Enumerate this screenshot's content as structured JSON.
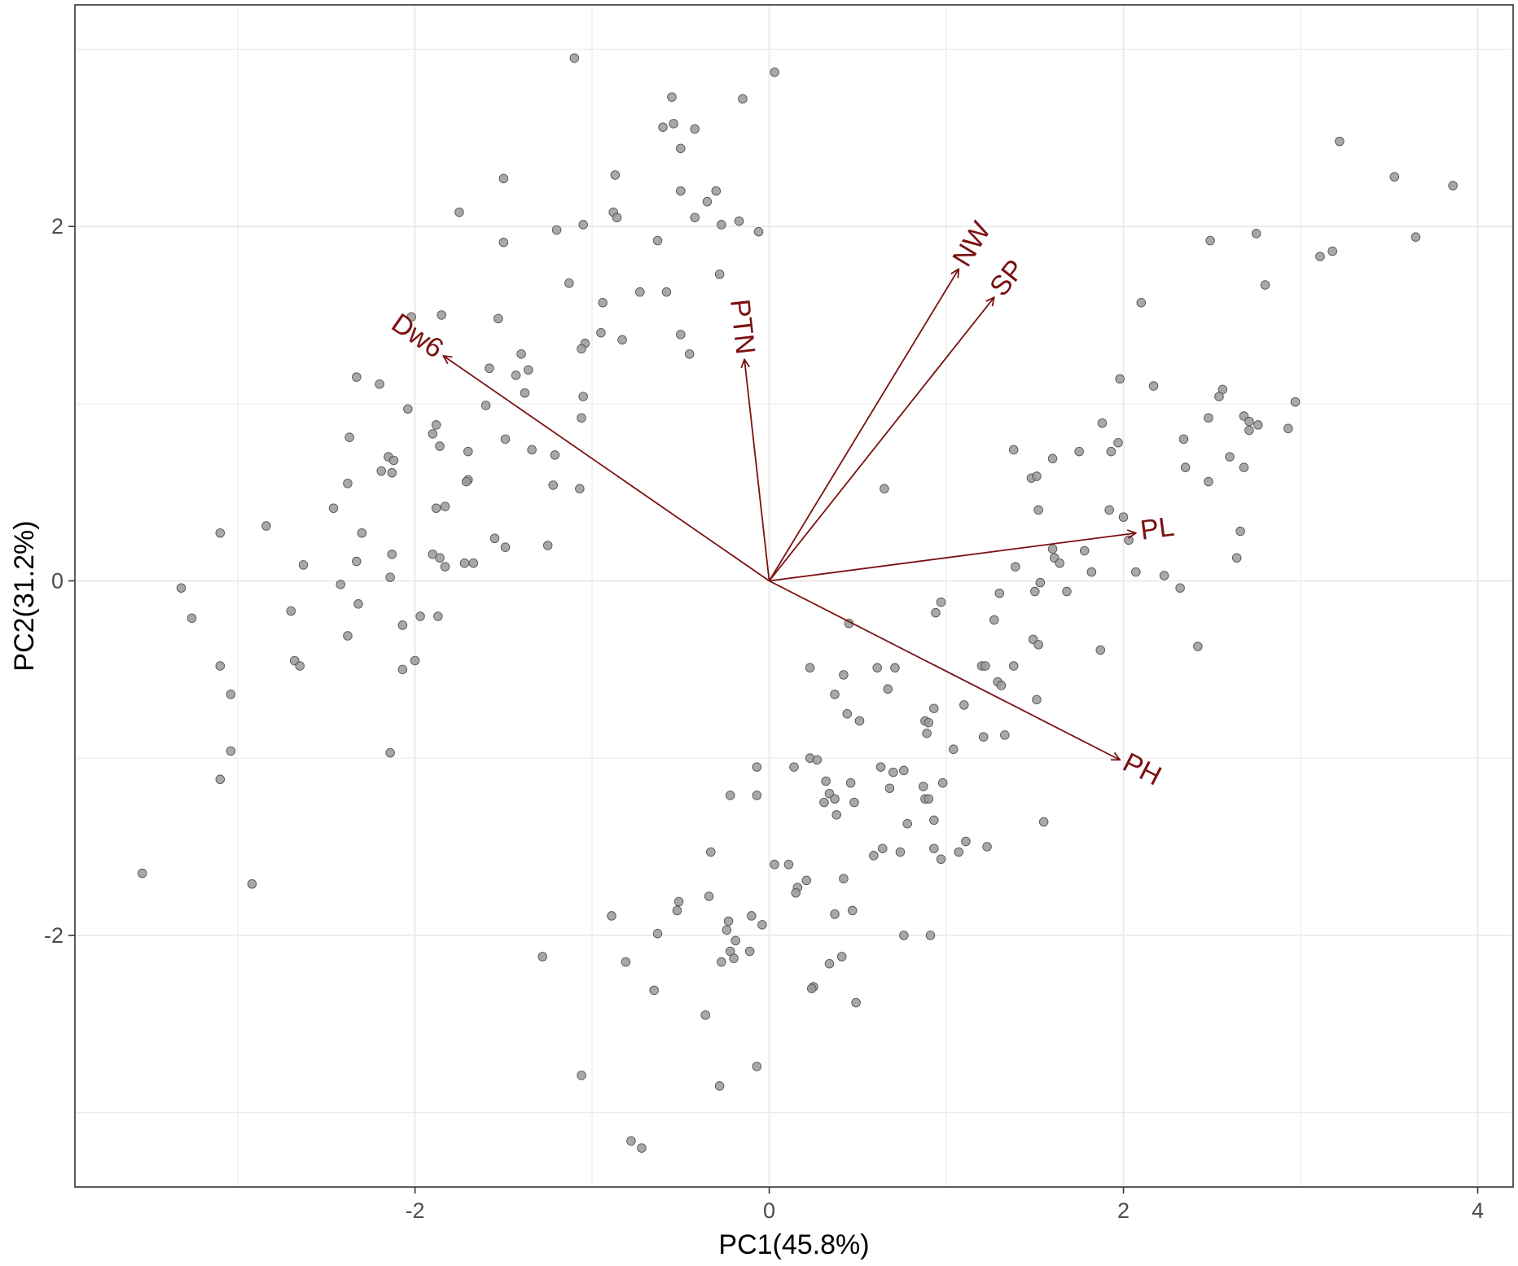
{
  "chart_data": {
    "type": "scatter",
    "xlabel": "PC1(45.8%)",
    "ylabel": "PC2(31.2%)",
    "xlim": [
      -3.92,
      4.2
    ],
    "ylim": [
      -3.42,
      3.25
    ],
    "x_ticks": [
      -2,
      0,
      2,
      4
    ],
    "x_tick_labels": [
      "-2",
      "0",
      "2",
      "4"
    ],
    "y_ticks": [
      -2,
      0,
      2
    ],
    "y_tick_labels": [
      "-2",
      "0",
      "2"
    ],
    "grid": true,
    "point_color": "#999999",
    "arrow_color": "#7b1111",
    "points": [
      [
        -1.1,
        2.95
      ],
      [
        0.03,
        2.87
      ],
      [
        -0.55,
        2.73
      ],
      [
        -0.15,
        2.72
      ],
      [
        -0.6,
        2.56
      ],
      [
        -0.54,
        2.58
      ],
      [
        -0.42,
        2.55
      ],
      [
        -0.5,
        2.44
      ],
      [
        -1.5,
        2.27
      ],
      [
        -0.87,
        2.29
      ],
      [
        -0.3,
        2.2
      ],
      [
        -0.5,
        2.2
      ],
      [
        -0.35,
        2.14
      ],
      [
        -1.75,
        2.08
      ],
      [
        -0.88,
        2.08
      ],
      [
        -0.86,
        2.05
      ],
      [
        -0.42,
        2.05
      ],
      [
        -0.17,
        2.03
      ],
      [
        -0.27,
        2.01
      ],
      [
        -1.2,
        1.98
      ],
      [
        -1.05,
        2.01
      ],
      [
        -0.06,
        1.97
      ],
      [
        -1.5,
        1.91
      ],
      [
        -0.63,
        1.92
      ],
      [
        -0.28,
        1.73
      ],
      [
        -1.13,
        1.68
      ],
      [
        -0.73,
        1.63
      ],
      [
        -0.58,
        1.63
      ],
      [
        -0.94,
        1.57
      ],
      [
        -1.53,
        1.48
      ],
      [
        -1.85,
        1.5
      ],
      [
        -2.02,
        1.49
      ],
      [
        -0.95,
        1.4
      ],
      [
        -0.83,
        1.36
      ],
      [
        -1.04,
        1.34
      ],
      [
        -1.06,
        1.31
      ],
      [
        -0.5,
        1.39
      ],
      [
        -0.45,
        1.28
      ],
      [
        -1.4,
        1.28
      ],
      [
        -1.36,
        1.19
      ],
      [
        -1.43,
        1.16
      ],
      [
        -1.58,
        1.2
      ],
      [
        -2.33,
        1.15
      ],
      [
        -2.2,
        1.11
      ],
      [
        -1.38,
        1.06
      ],
      [
        -1.05,
        1.04
      ],
      [
        -2.04,
        0.97
      ],
      [
        -1.6,
        0.99
      ],
      [
        -1.06,
        0.92
      ],
      [
        -1.88,
        0.88
      ],
      [
        -1.9,
        0.83
      ],
      [
        -2.37,
        0.81
      ],
      [
        -1.49,
        0.8
      ],
      [
        -1.86,
        0.76
      ],
      [
        -1.34,
        0.74
      ],
      [
        -1.21,
        0.71
      ],
      [
        -1.7,
        0.73
      ],
      [
        -2.15,
        0.7
      ],
      [
        -2.12,
        0.68
      ],
      [
        -2.19,
        0.62
      ],
      [
        -2.13,
        0.61
      ],
      [
        -1.7,
        0.57
      ],
      [
        -1.71,
        0.56
      ],
      [
        -2.38,
        0.55
      ],
      [
        -1.22,
        0.54
      ],
      [
        -1.07,
        0.52
      ],
      [
        -1.83,
        0.42
      ],
      [
        -1.88,
        0.41
      ],
      [
        -2.46,
        0.41
      ],
      [
        -2.3,
        0.27
      ],
      [
        -2.84,
        0.31
      ],
      [
        -3.1,
        0.27
      ],
      [
        -1.55,
        0.24
      ],
      [
        -1.49,
        0.19
      ],
      [
        -1.25,
        0.2
      ],
      [
        -2.13,
        0.15
      ],
      [
        -1.9,
        0.15
      ],
      [
        -1.86,
        0.13
      ],
      [
        -2.33,
        0.11
      ],
      [
        -1.72,
        0.1
      ],
      [
        -1.67,
        0.1
      ],
      [
        -1.83,
        0.08
      ],
      [
        -2.63,
        0.09
      ],
      [
        -2.14,
        0.02
      ],
      [
        -2.42,
        -0.02
      ],
      [
        -3.32,
        -0.04
      ],
      [
        -2.32,
        -0.13
      ],
      [
        -2.7,
        -0.17
      ],
      [
        -1.87,
        -0.2
      ],
      [
        -1.97,
        -0.2
      ],
      [
        -3.26,
        -0.21
      ],
      [
        -2.07,
        -0.25
      ],
      [
        -2.38,
        -0.31
      ],
      [
        -2.68,
        -0.45
      ],
      [
        -2.65,
        -0.48
      ],
      [
        -2.0,
        -0.45
      ],
      [
        -3.1,
        -0.48
      ],
      [
        -2.07,
        -0.5
      ],
      [
        -3.04,
        -0.64
      ],
      [
        -2.14,
        -0.97
      ],
      [
        -3.04,
        -0.96
      ],
      [
        -3.1,
        -1.12
      ],
      [
        -3.54,
        -1.65
      ],
      [
        -2.92,
        -1.71
      ],
      [
        3.22,
        2.48
      ],
      [
        3.53,
        2.28
      ],
      [
        3.86,
        2.23
      ],
      [
        2.75,
        1.96
      ],
      [
        2.49,
        1.92
      ],
      [
        3.65,
        1.94
      ],
      [
        3.18,
        1.86
      ],
      [
        3.11,
        1.83
      ],
      [
        2.8,
        1.67
      ],
      [
        2.1,
        1.57
      ],
      [
        1.98,
        1.14
      ],
      [
        2.17,
        1.1
      ],
      [
        2.56,
        1.08
      ],
      [
        2.54,
        1.04
      ],
      [
        2.97,
        1.01
      ],
      [
        2.68,
        0.93
      ],
      [
        2.48,
        0.92
      ],
      [
        2.71,
        0.9
      ],
      [
        2.76,
        0.88
      ],
      [
        1.88,
        0.89
      ],
      [
        2.93,
        0.86
      ],
      [
        2.71,
        0.85
      ],
      [
        2.34,
        0.8
      ],
      [
        1.97,
        0.78
      ],
      [
        1.38,
        0.74
      ],
      [
        1.75,
        0.73
      ],
      [
        1.6,
        0.69
      ],
      [
        2.6,
        0.7
      ],
      [
        1.93,
        0.73
      ],
      [
        2.68,
        0.64
      ],
      [
        2.35,
        0.64
      ],
      [
        1.48,
        0.58
      ],
      [
        1.51,
        0.59
      ],
      [
        2.48,
        0.56
      ],
      [
        0.65,
        0.52
      ],
      [
        1.52,
        0.4
      ],
      [
        1.92,
        0.4
      ],
      [
        2.0,
        0.36
      ],
      [
        2.66,
        0.28
      ],
      [
        1.6,
        0.18
      ],
      [
        1.78,
        0.17
      ],
      [
        2.03,
        0.23
      ],
      [
        2.64,
        0.13
      ],
      [
        1.39,
        0.08
      ],
      [
        1.61,
        0.13
      ],
      [
        1.64,
        0.1
      ],
      [
        1.82,
        0.05
      ],
      [
        2.07,
        0.05
      ],
      [
        2.23,
        0.03
      ],
      [
        1.53,
        -0.01
      ],
      [
        1.5,
        -0.06
      ],
      [
        1.3,
        -0.07
      ],
      [
        1.68,
        -0.06
      ],
      [
        2.32,
        -0.04
      ],
      [
        0.97,
        -0.12
      ],
      [
        0.94,
        -0.18
      ],
      [
        1.27,
        -0.22
      ],
      [
        1.49,
        -0.33
      ],
      [
        1.52,
        -0.36
      ],
      [
        1.87,
        -0.39
      ],
      [
        2.42,
        -0.37
      ],
      [
        0.45,
        -0.24
      ],
      [
        0.23,
        -0.49
      ],
      [
        0.42,
        -0.53
      ],
      [
        0.61,
        -0.49
      ],
      [
        0.71,
        -0.49
      ],
      [
        1.2,
        -0.48
      ],
      [
        1.22,
        -0.48
      ],
      [
        1.38,
        -0.48
      ],
      [
        1.29,
        -0.57
      ],
      [
        1.31,
        -0.59
      ],
      [
        0.37,
        -0.64
      ],
      [
        0.67,
        -0.61
      ],
      [
        0.93,
        -0.72
      ],
      [
        0.44,
        -0.75
      ],
      [
        0.51,
        -0.79
      ],
      [
        0.88,
        -0.79
      ],
      [
        0.9,
        -0.8
      ],
      [
        1.1,
        -0.7
      ],
      [
        1.51,
        -0.67
      ],
      [
        0.89,
        -0.86
      ],
      [
        1.21,
        -0.88
      ],
      [
        1.33,
        -0.87
      ],
      [
        1.04,
        -0.95
      ],
      [
        0.23,
        -1.0
      ],
      [
        0.27,
        -1.01
      ],
      [
        0.14,
        -1.05
      ],
      [
        -0.07,
        -1.05
      ],
      [
        0.63,
        -1.05
      ],
      [
        0.7,
        -1.08
      ],
      [
        0.76,
        -1.07
      ],
      [
        0.32,
        -1.13
      ],
      [
        0.46,
        -1.14
      ],
      [
        0.98,
        -1.14
      ],
      [
        0.87,
        -1.16
      ],
      [
        0.68,
        -1.17
      ],
      [
        0.88,
        -1.23
      ],
      [
        0.34,
        -1.2
      ],
      [
        0.37,
        -1.23
      ],
      [
        0.31,
        -1.25
      ],
      [
        -0.22,
        -1.21
      ],
      [
        -0.07,
        -1.21
      ],
      [
        0.48,
        -1.25
      ],
      [
        0.38,
        -1.32
      ],
      [
        0.9,
        -1.23
      ],
      [
        0.93,
        -1.35
      ],
      [
        0.78,
        -1.37
      ],
      [
        0.93,
        -1.51
      ],
      [
        0.64,
        -1.51
      ],
      [
        0.74,
        -1.53
      ],
      [
        0.97,
        -1.57
      ],
      [
        1.11,
        -1.47
      ],
      [
        1.23,
        -1.5
      ],
      [
        1.55,
        -1.36
      ],
      [
        0.59,
        -1.55
      ],
      [
        1.07,
        -1.53
      ],
      [
        -0.33,
        -1.53
      ],
      [
        0.03,
        -1.6
      ],
      [
        0.11,
        -1.6
      ],
      [
        0.42,
        -1.68
      ],
      [
        0.21,
        -1.69
      ],
      [
        0.16,
        -1.73
      ],
      [
        0.15,
        -1.76
      ],
      [
        -0.34,
        -1.78
      ],
      [
        -0.51,
        -1.81
      ],
      [
        -0.52,
        -1.86
      ],
      [
        0.47,
        -1.86
      ],
      [
        0.37,
        -1.88
      ],
      [
        -0.89,
        -1.89
      ],
      [
        -0.1,
        -1.89
      ],
      [
        -0.23,
        -1.92
      ],
      [
        -0.04,
        -1.94
      ],
      [
        -0.24,
        -1.97
      ],
      [
        0.76,
        -2.0
      ],
      [
        0.91,
        -2.0
      ],
      [
        -0.63,
        -1.99
      ],
      [
        -0.19,
        -2.03
      ],
      [
        -1.28,
        -2.12
      ],
      [
        -0.81,
        -2.15
      ],
      [
        -0.22,
        -2.09
      ],
      [
        -0.11,
        -2.09
      ],
      [
        0.41,
        -2.12
      ],
      [
        0.34,
        -2.16
      ],
      [
        -0.2,
        -2.13
      ],
      [
        -0.27,
        -2.15
      ],
      [
        0.25,
        -2.29
      ],
      [
        0.24,
        -2.3
      ],
      [
        -0.65,
        -2.31
      ],
      [
        0.49,
        -2.38
      ],
      [
        -0.36,
        -2.45
      ],
      [
        -1.06,
        -2.79
      ],
      [
        -0.28,
        -2.85
      ],
      [
        -0.07,
        -2.74
      ],
      [
        -0.78,
        -3.16
      ],
      [
        -0.72,
        -3.2
      ]
    ],
    "vectors": [
      {
        "name": "Dw6",
        "x": -1.84,
        "y": 1.27
      },
      {
        "name": "PTN",
        "x": -0.14,
        "y": 1.25
      },
      {
        "name": "NW",
        "x": 1.07,
        "y": 1.76
      },
      {
        "name": "SP",
        "x": 1.27,
        "y": 1.6
      },
      {
        "name": "PL",
        "x": 2.07,
        "y": 0.27
      },
      {
        "name": "PH",
        "x": 1.98,
        "y": -1.01
      }
    ]
  }
}
